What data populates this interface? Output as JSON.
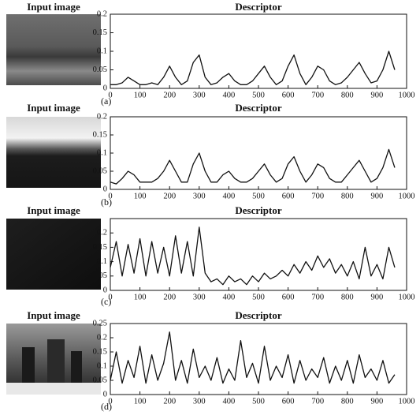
{
  "chart_data": [
    {
      "type": "line",
      "title": "Descriptor",
      "image_title": "Input image",
      "panel_label": "(a)",
      "x": [
        0,
        20,
        40,
        60,
        80,
        100,
        120,
        140,
        160,
        180,
        200,
        220,
        240,
        260,
        280,
        300,
        320,
        340,
        360,
        380,
        400,
        420,
        440,
        460,
        480,
        500,
        520,
        540,
        560,
        580,
        600,
        620,
        640,
        660,
        680,
        700,
        720,
        740,
        760,
        780,
        800,
        820,
        840,
        860,
        880,
        900,
        920,
        940,
        960
      ],
      "values": [
        0.01,
        0.01,
        0.015,
        0.03,
        0.02,
        0.01,
        0.01,
        0.015,
        0.01,
        0.03,
        0.06,
        0.03,
        0.01,
        0.02,
        0.07,
        0.09,
        0.03,
        0.01,
        0.015,
        0.03,
        0.04,
        0.02,
        0.01,
        0.01,
        0.02,
        0.04,
        0.06,
        0.03,
        0.01,
        0.02,
        0.06,
        0.09,
        0.04,
        0.01,
        0.03,
        0.06,
        0.05,
        0.02,
        0.01,
        0.015,
        0.03,
        0.05,
        0.07,
        0.04,
        0.015,
        0.02,
        0.05,
        0.1,
        0.05
      ],
      "color": "#111111",
      "xlim": [
        0,
        1000
      ],
      "xticks": [
        0,
        100,
        200,
        300,
        400,
        500,
        600,
        700,
        800,
        900,
        1000
      ],
      "ylim": [
        0,
        0.2
      ],
      "yticks": [
        0,
        0.05,
        0.1,
        0.15,
        0.2
      ]
    },
    {
      "type": "line",
      "title": "Descriptor",
      "image_title": "Input image",
      "panel_label": "(b)",
      "x": [
        0,
        20,
        40,
        60,
        80,
        100,
        120,
        140,
        160,
        180,
        200,
        220,
        240,
        260,
        280,
        300,
        320,
        340,
        360,
        380,
        400,
        420,
        440,
        460,
        480,
        500,
        520,
        540,
        560,
        580,
        600,
        620,
        640,
        660,
        680,
        700,
        720,
        740,
        760,
        780,
        800,
        820,
        840,
        860,
        880,
        900,
        920,
        940,
        960
      ],
      "values": [
        0.02,
        0.015,
        0.03,
        0.05,
        0.04,
        0.02,
        0.02,
        0.02,
        0.03,
        0.05,
        0.08,
        0.05,
        0.02,
        0.02,
        0.07,
        0.1,
        0.05,
        0.02,
        0.02,
        0.04,
        0.05,
        0.03,
        0.02,
        0.02,
        0.03,
        0.05,
        0.07,
        0.04,
        0.02,
        0.03,
        0.07,
        0.09,
        0.05,
        0.02,
        0.04,
        0.07,
        0.06,
        0.03,
        0.02,
        0.02,
        0.04,
        0.06,
        0.08,
        0.05,
        0.02,
        0.03,
        0.06,
        0.11,
        0.06
      ],
      "color": "#111111",
      "xlim": [
        0,
        1000
      ],
      "xticks": [
        0,
        100,
        200,
        300,
        400,
        500,
        600,
        700,
        800,
        900,
        1000
      ],
      "ylim": [
        0,
        0.2
      ],
      "yticks": [
        0,
        0.05,
        0.1,
        0.15,
        0.2
      ]
    },
    {
      "type": "line",
      "title": "Descriptor",
      "image_title": "Input image",
      "panel_label": "(c)",
      "x": [
        0,
        20,
        40,
        60,
        80,
        100,
        120,
        140,
        160,
        180,
        200,
        220,
        240,
        260,
        280,
        300,
        320,
        340,
        360,
        380,
        400,
        420,
        440,
        460,
        480,
        500,
        520,
        540,
        560,
        580,
        600,
        620,
        640,
        660,
        680,
        700,
        720,
        740,
        760,
        780,
        800,
        820,
        840,
        860,
        880,
        900,
        920,
        940,
        960
      ],
      "values": [
        0.08,
        0.17,
        0.05,
        0.16,
        0.06,
        0.18,
        0.05,
        0.17,
        0.06,
        0.15,
        0.05,
        0.19,
        0.06,
        0.17,
        0.05,
        0.22,
        0.06,
        0.03,
        0.04,
        0.02,
        0.05,
        0.03,
        0.04,
        0.02,
        0.05,
        0.03,
        0.06,
        0.04,
        0.05,
        0.07,
        0.05,
        0.09,
        0.06,
        0.1,
        0.07,
        0.12,
        0.08,
        0.11,
        0.06,
        0.09,
        0.05,
        0.1,
        0.04,
        0.15,
        0.05,
        0.09,
        0.04,
        0.15,
        0.08
      ],
      "color": "#111111",
      "xlim": [
        0,
        1000
      ],
      "xticks": [
        0,
        100,
        200,
        300,
        400,
        500,
        600,
        700,
        800,
        900,
        1000
      ],
      "ylim": [
        0,
        0.25
      ],
      "yticks": [
        0,
        0.05,
        0.1,
        0.15,
        0.2
      ]
    },
    {
      "type": "line",
      "title": "Descriptor",
      "image_title": "Input image",
      "panel_label": "(d)",
      "x": [
        0,
        20,
        40,
        60,
        80,
        100,
        120,
        140,
        160,
        180,
        200,
        220,
        240,
        260,
        280,
        300,
        320,
        340,
        360,
        380,
        400,
        420,
        440,
        460,
        480,
        500,
        520,
        540,
        560,
        580,
        600,
        620,
        640,
        660,
        680,
        700,
        720,
        740,
        760,
        780,
        800,
        820,
        840,
        860,
        880,
        900,
        920,
        940,
        960
      ],
      "values": [
        0.05,
        0.15,
        0.04,
        0.12,
        0.06,
        0.17,
        0.04,
        0.14,
        0.05,
        0.11,
        0.22,
        0.05,
        0.12,
        0.04,
        0.16,
        0.06,
        0.1,
        0.05,
        0.13,
        0.04,
        0.09,
        0.05,
        0.19,
        0.06,
        0.11,
        0.04,
        0.17,
        0.05,
        0.1,
        0.06,
        0.14,
        0.04,
        0.12,
        0.05,
        0.09,
        0.06,
        0.13,
        0.04,
        0.1,
        0.05,
        0.12,
        0.04,
        0.14,
        0.06,
        0.09,
        0.05,
        0.12,
        0.04,
        0.07
      ],
      "color": "#111111",
      "xlim": [
        0,
        1000
      ],
      "xticks": [
        0,
        100,
        200,
        300,
        400,
        500,
        600,
        700,
        800,
        900,
        1000
      ],
      "ylim": [
        0,
        0.25
      ],
      "yticks": [
        0,
        0.05,
        0.1,
        0.15,
        0.2,
        0.25
      ]
    }
  ]
}
